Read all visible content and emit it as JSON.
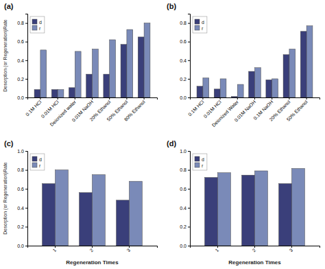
{
  "chart_data": [
    {
      "type": "bar",
      "title": "(a)",
      "categories": [
        "0.1M HCl",
        "0.01M HCl",
        "Deionized water",
        "0.01M NaOH",
        "20% Ethanol",
        "50% Ethanol",
        "80% Ethanol"
      ],
      "series": [
        {
          "name": "d",
          "color": "#3a3f7a",
          "values": [
            0.085,
            0.085,
            0.105,
            0.25,
            0.25,
            0.57,
            0.65
          ]
        },
        {
          "name": "r",
          "color": "#7a8ab8",
          "values": [
            0.51,
            0.085,
            0.495,
            0.52,
            0.62,
            0.73,
            0.8
          ]
        }
      ],
      "ylabel": "Desorption (or Regeneration)Rate",
      "ylim": [
        0.0,
        0.9
      ],
      "yticks": [
        {
          "value": 0.0,
          "label": "0.0"
        },
        0.2,
        0.4,
        0.6,
        0.8
      ],
      "legend": "upper left",
      "grid": false
    },
    {
      "type": "bar",
      "title": "(b)",
      "categories": [
        "0.1M HCl",
        "0.01M HCl",
        "Deionized Water",
        "0.01M NaOH",
        "0.1M NaOH",
        "20% Ethanol",
        "50% Ethanol"
      ],
      "series": [
        {
          "name": "d",
          "color": "#3a3f7a",
          "values": [
            0.12,
            0.09,
            0.01,
            0.28,
            0.19,
            0.46,
            0.71
          ]
        },
        {
          "name": "r",
          "color": "#7a8ab8",
          "values": [
            0.21,
            0.2,
            0.14,
            0.32,
            0.2,
            0.52,
            0.77
          ]
        }
      ],
      "ylim": [
        0.0,
        0.9
      ],
      "yticks": [
        {
          "value": 0.0,
          "label": "0.0"
        },
        0.2,
        0.4,
        0.6,
        0.8
      ],
      "legend": "upper left",
      "grid": false
    },
    {
      "type": "bar",
      "title": "(c)",
      "categories": [
        "1",
        "2",
        "3"
      ],
      "series": [
        {
          "name": "d",
          "color": "#3a3f7a",
          "values": [
            0.655,
            0.56,
            0.48
          ]
        },
        {
          "name": "r",
          "color": "#7a8ab8",
          "values": [
            0.8,
            0.75,
            0.68
          ]
        }
      ],
      "xlabel": "Regeneration Times",
      "ylabel": "Desorption (or Regeneration)Rate",
      "ylim": [
        0.0,
        1.0
      ],
      "yticks": [
        {
          "value": 0.0,
          "label": "0.0"
        },
        0.2,
        0.4,
        0.6,
        0.8,
        {
          "value": 1.0,
          "label": "1.0"
        }
      ],
      "legend": "upper left",
      "grid": false
    },
    {
      "type": "bar",
      "title": "(d)",
      "categories": [
        "1",
        "2",
        "3"
      ],
      "series": [
        {
          "name": "d",
          "color": "#3a3f7a",
          "values": [
            0.72,
            0.745,
            0.655
          ]
        },
        {
          "name": "r",
          "color": "#7a8ab8",
          "values": [
            0.77,
            0.79,
            0.815
          ]
        }
      ],
      "xlabel": "Regeneration Times",
      "ylim": [
        0.0,
        1.0
      ],
      "yticks": [
        {
          "value": 0.0,
          "label": "0.0"
        },
        0.2,
        0.4,
        0.6,
        0.8,
        {
          "value": 1.0,
          "label": "1.0"
        }
      ],
      "legend": "upper left",
      "grid": false
    }
  ]
}
